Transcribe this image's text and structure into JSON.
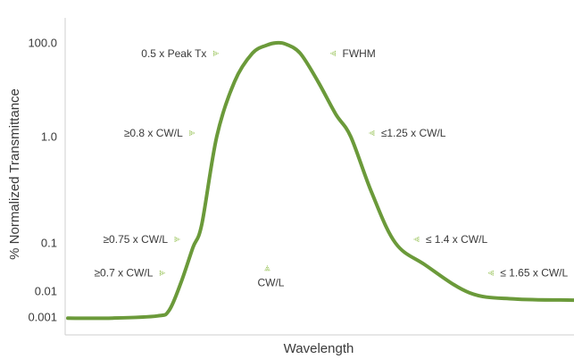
{
  "colors": {
    "curve": "#6b9a3a",
    "marker": "#9cc55e",
    "axis": "#cfcfcf",
    "text": "#3a3a3a"
  },
  "chart_data": {
    "type": "line",
    "xlabel": "Wavelength",
    "ylabel": "% Normalized Transmittance",
    "y_scale": "log",
    "grid": false,
    "legend": "none",
    "y_ticks": [
      {
        "value": 100,
        "label": "100.0"
      },
      {
        "value": 1,
        "label": "1.0"
      },
      {
        "value": 0.1,
        "label": "0.1"
      },
      {
        "value": 0.01,
        "label": "0.01"
      },
      {
        "value": 0.001,
        "label": "0.001"
      }
    ],
    "x_range": [
      0.3,
      2.0
    ],
    "series": [
      {
        "x": [
          0.3,
          0.45,
          0.6,
          0.64,
          0.68,
          0.72,
          0.75,
          0.8,
          0.86,
          0.92,
          0.97,
          1.0,
          1.03,
          1.08,
          1.14,
          1.2,
          1.25,
          1.32,
          1.4,
          1.5,
          1.65,
          1.8,
          2.0
        ],
        "y": [
          0.0009,
          0.00091,
          0.0011,
          0.0018,
          0.015,
          0.08,
          0.15,
          1.0,
          15,
          60,
          90,
          100,
          95,
          60,
          15,
          3,
          1.0,
          0.3,
          0.1,
          0.035,
          0.0085,
          0.005,
          0.0045
        ]
      }
    ],
    "annotations": [
      {
        "text": "0.5 x Peak Tx",
        "x": 0.88,
        "y": 50,
        "side": "left"
      },
      {
        "text": "FWHM",
        "x": 1.12,
        "y": 50,
        "side": "right"
      },
      {
        "text": "≥0.8 x CW/L",
        "x": 0.8,
        "y": 1.0,
        "side": "left"
      },
      {
        "text": "≤1.25 x CW/L",
        "x": 1.25,
        "y": 1.0,
        "side": "right"
      },
      {
        "text": "≥0.75 x CW/L",
        "x": 0.75,
        "y": 0.1,
        "side": "left"
      },
      {
        "text": "≤ 1.4 x CW/L",
        "x": 1.4,
        "y": 0.1,
        "side": "right"
      },
      {
        "text": "≥0.7 x CW/L",
        "x": 0.7,
        "y": 0.02,
        "side": "left"
      },
      {
        "text": "≤ 1.65 x CW/L",
        "x": 1.65,
        "y": 0.02,
        "side": "right"
      },
      {
        "text": "CW/L",
        "x": 1.0,
        "y": 0.02,
        "side": "below"
      }
    ]
  }
}
